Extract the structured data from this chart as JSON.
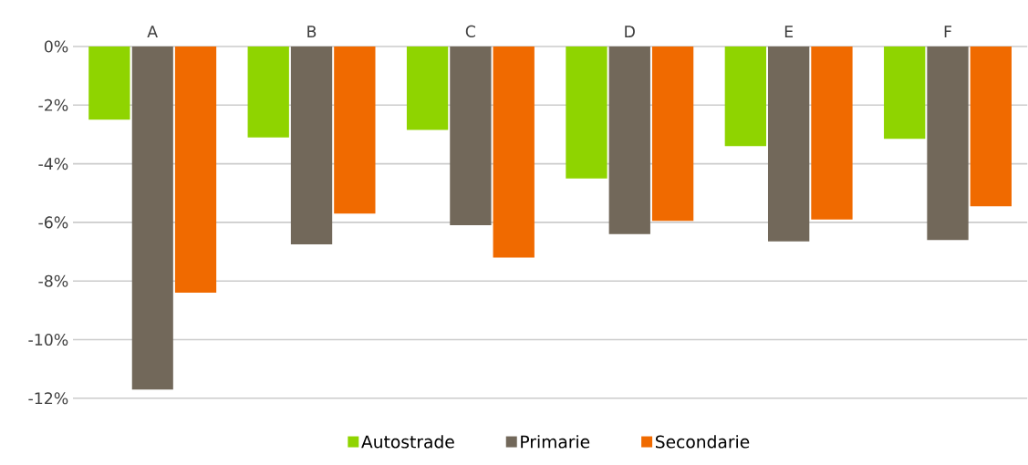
{
  "chart_data": {
    "type": "bar",
    "categories": [
      "A",
      "B",
      "C",
      "D",
      "E",
      "F"
    ],
    "series": [
      {
        "name": "Autostrade",
        "color": "#8fd400",
        "values": [
          -2.5,
          -3.1,
          -2.85,
          -4.5,
          -3.4,
          -3.15
        ]
      },
      {
        "name": "Primarie",
        "color": "#72685a",
        "values": [
          -11.7,
          -6.75,
          -6.1,
          -6.4,
          -6.65,
          -6.6
        ]
      },
      {
        "name": "Secondarie",
        "color": "#f06a00",
        "values": [
          -8.4,
          -5.7,
          -7.2,
          -5.95,
          -5.9,
          -5.45
        ]
      }
    ],
    "ylim": [
      -12,
      0
    ],
    "yticks": [
      {
        "value": 0,
        "label": "0%"
      },
      {
        "value": -2,
        "label": "-2%"
      },
      {
        "value": -4,
        "label": "-4%"
      },
      {
        "value": -6,
        "label": "-6%"
      },
      {
        "value": -8,
        "label": "-8%"
      },
      {
        "value": -10,
        "label": "-10%"
      },
      {
        "value": -12,
        "label": "-12%"
      }
    ],
    "grid": "y",
    "legend": "bottom"
  }
}
